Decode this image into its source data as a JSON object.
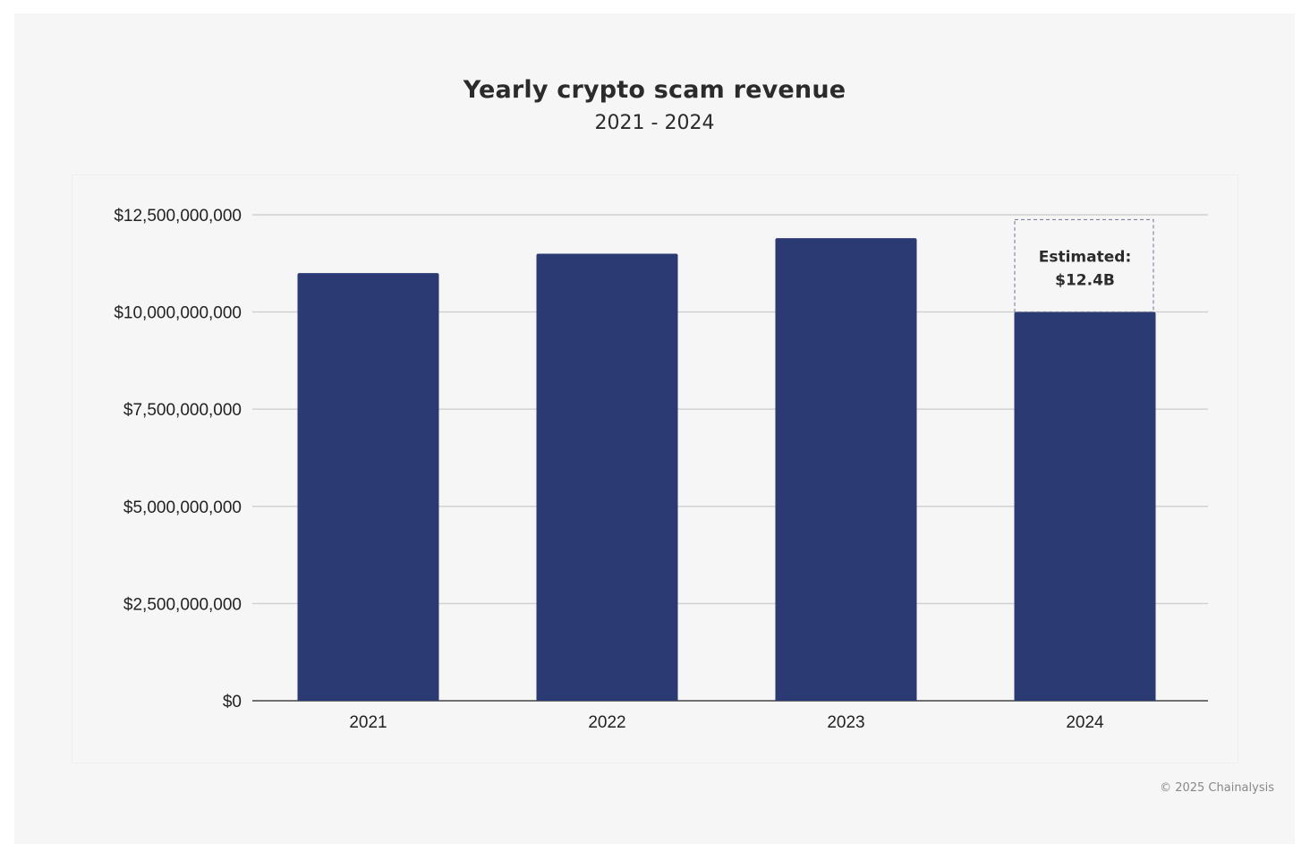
{
  "chart_data": {
    "type": "bar",
    "title": "Yearly crypto scam revenue",
    "subtitle": "2021 - 2024",
    "categories": [
      "2021",
      "2022",
      "2023",
      "2024"
    ],
    "values": [
      11000000000,
      11500000000,
      11900000000,
      10000000000
    ],
    "ylim": [
      0,
      12500000000
    ],
    "yticks": [
      0,
      2500000000,
      5000000000,
      7500000000,
      10000000000,
      12500000000
    ],
    "ytick_labels": [
      "$0",
      "$2,500,000,000",
      "$5,000,000,000",
      "$7,500,000,000",
      "$10,000,000,000",
      "$12,500,000,000"
    ],
    "xlabel": "",
    "ylabel": "",
    "grid": true,
    "bar_color": "#2b3a73",
    "annotation": {
      "category": "2024",
      "estimated_value": 12400000000,
      "line1": "Estimated:",
      "line2": "$12.4B"
    }
  },
  "footer": {
    "credit": "© 2025 Chainalysis"
  }
}
